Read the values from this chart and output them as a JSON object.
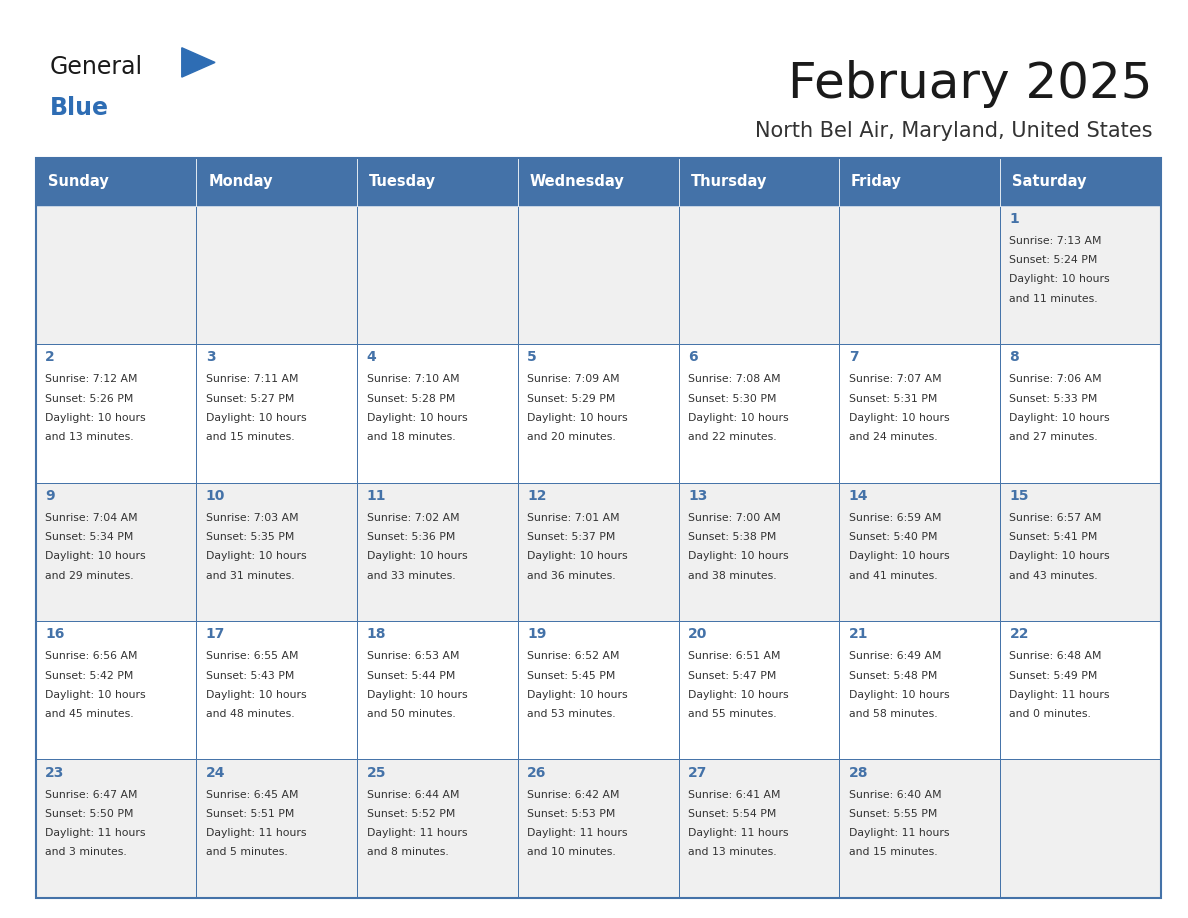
{
  "title": "February 2025",
  "subtitle": "North Bel Air, Maryland, United States",
  "days_of_week": [
    "Sunday",
    "Monday",
    "Tuesday",
    "Wednesday",
    "Thursday",
    "Friday",
    "Saturday"
  ],
  "header_bg": "#4472a8",
  "header_fg": "#ffffff",
  "row1_bg": "#f0f0f0",
  "row2_bg": "#ffffff",
  "border_color": "#4472a8",
  "day_num_color": "#4472a8",
  "text_color": "#333333",
  "calendar_data": [
    [
      null,
      null,
      null,
      null,
      null,
      null,
      {
        "day": 1,
        "sunrise": "7:13 AM",
        "sunset": "5:24 PM",
        "daylight_h": "10 hours",
        "daylight_m": "and 11 minutes."
      }
    ],
    [
      {
        "day": 2,
        "sunrise": "7:12 AM",
        "sunset": "5:26 PM",
        "daylight_h": "10 hours",
        "daylight_m": "and 13 minutes."
      },
      {
        "day": 3,
        "sunrise": "7:11 AM",
        "sunset": "5:27 PM",
        "daylight_h": "10 hours",
        "daylight_m": "and 15 minutes."
      },
      {
        "day": 4,
        "sunrise": "7:10 AM",
        "sunset": "5:28 PM",
        "daylight_h": "10 hours",
        "daylight_m": "and 18 minutes."
      },
      {
        "day": 5,
        "sunrise": "7:09 AM",
        "sunset": "5:29 PM",
        "daylight_h": "10 hours",
        "daylight_m": "and 20 minutes."
      },
      {
        "day": 6,
        "sunrise": "7:08 AM",
        "sunset": "5:30 PM",
        "daylight_h": "10 hours",
        "daylight_m": "and 22 minutes."
      },
      {
        "day": 7,
        "sunrise": "7:07 AM",
        "sunset": "5:31 PM",
        "daylight_h": "10 hours",
        "daylight_m": "and 24 minutes."
      },
      {
        "day": 8,
        "sunrise": "7:06 AM",
        "sunset": "5:33 PM",
        "daylight_h": "10 hours",
        "daylight_m": "and 27 minutes."
      }
    ],
    [
      {
        "day": 9,
        "sunrise": "7:04 AM",
        "sunset": "5:34 PM",
        "daylight_h": "10 hours",
        "daylight_m": "and 29 minutes."
      },
      {
        "day": 10,
        "sunrise": "7:03 AM",
        "sunset": "5:35 PM",
        "daylight_h": "10 hours",
        "daylight_m": "and 31 minutes."
      },
      {
        "day": 11,
        "sunrise": "7:02 AM",
        "sunset": "5:36 PM",
        "daylight_h": "10 hours",
        "daylight_m": "and 33 minutes."
      },
      {
        "day": 12,
        "sunrise": "7:01 AM",
        "sunset": "5:37 PM",
        "daylight_h": "10 hours",
        "daylight_m": "and 36 minutes."
      },
      {
        "day": 13,
        "sunrise": "7:00 AM",
        "sunset": "5:38 PM",
        "daylight_h": "10 hours",
        "daylight_m": "and 38 minutes."
      },
      {
        "day": 14,
        "sunrise": "6:59 AM",
        "sunset": "5:40 PM",
        "daylight_h": "10 hours",
        "daylight_m": "and 41 minutes."
      },
      {
        "day": 15,
        "sunrise": "6:57 AM",
        "sunset": "5:41 PM",
        "daylight_h": "10 hours",
        "daylight_m": "and 43 minutes."
      }
    ],
    [
      {
        "day": 16,
        "sunrise": "6:56 AM",
        "sunset": "5:42 PM",
        "daylight_h": "10 hours",
        "daylight_m": "and 45 minutes."
      },
      {
        "day": 17,
        "sunrise": "6:55 AM",
        "sunset": "5:43 PM",
        "daylight_h": "10 hours",
        "daylight_m": "and 48 minutes."
      },
      {
        "day": 18,
        "sunrise": "6:53 AM",
        "sunset": "5:44 PM",
        "daylight_h": "10 hours",
        "daylight_m": "and 50 minutes."
      },
      {
        "day": 19,
        "sunrise": "6:52 AM",
        "sunset": "5:45 PM",
        "daylight_h": "10 hours",
        "daylight_m": "and 53 minutes."
      },
      {
        "day": 20,
        "sunrise": "6:51 AM",
        "sunset": "5:47 PM",
        "daylight_h": "10 hours",
        "daylight_m": "and 55 minutes."
      },
      {
        "day": 21,
        "sunrise": "6:49 AM",
        "sunset": "5:48 PM",
        "daylight_h": "10 hours",
        "daylight_m": "and 58 minutes."
      },
      {
        "day": 22,
        "sunrise": "6:48 AM",
        "sunset": "5:49 PM",
        "daylight_h": "11 hours",
        "daylight_m": "and 0 minutes."
      }
    ],
    [
      {
        "day": 23,
        "sunrise": "6:47 AM",
        "sunset": "5:50 PM",
        "daylight_h": "11 hours",
        "daylight_m": "and 3 minutes."
      },
      {
        "day": 24,
        "sunrise": "6:45 AM",
        "sunset": "5:51 PM",
        "daylight_h": "11 hours",
        "daylight_m": "and 5 minutes."
      },
      {
        "day": 25,
        "sunrise": "6:44 AM",
        "sunset": "5:52 PM",
        "daylight_h": "11 hours",
        "daylight_m": "and 8 minutes."
      },
      {
        "day": 26,
        "sunrise": "6:42 AM",
        "sunset": "5:53 PM",
        "daylight_h": "11 hours",
        "daylight_m": "and 10 minutes."
      },
      {
        "day": 27,
        "sunrise": "6:41 AM",
        "sunset": "5:54 PM",
        "daylight_h": "11 hours",
        "daylight_m": "and 13 minutes."
      },
      {
        "day": 28,
        "sunrise": "6:40 AM",
        "sunset": "5:55 PM",
        "daylight_h": "11 hours",
        "daylight_m": "and 15 minutes."
      },
      null
    ]
  ]
}
